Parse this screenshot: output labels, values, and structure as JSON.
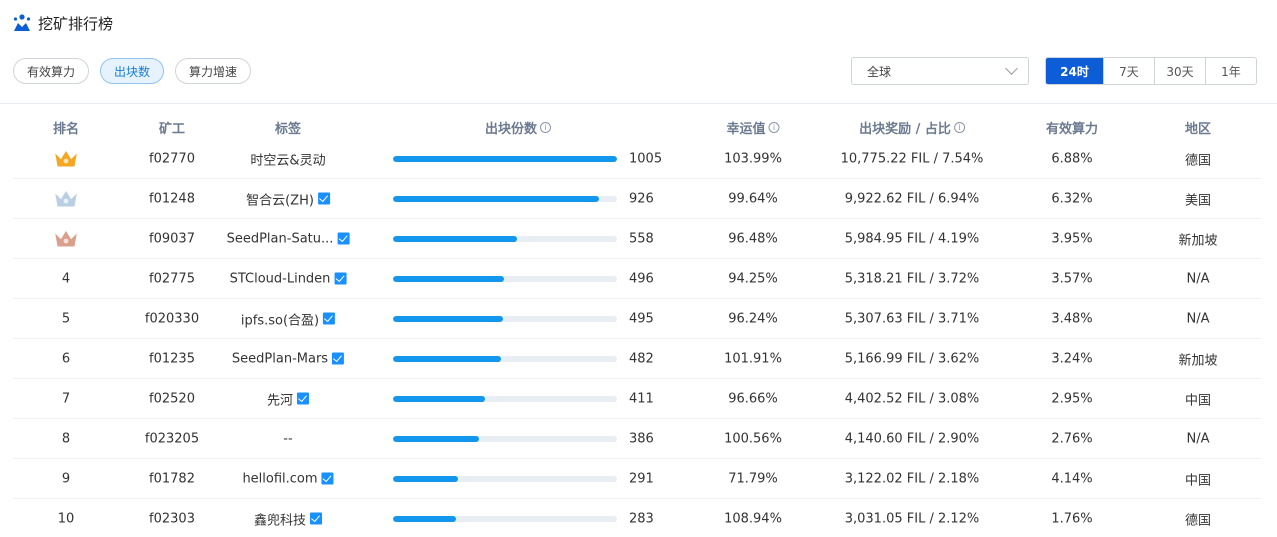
{
  "header": {
    "title": "挖矿排行榜"
  },
  "filters": {
    "items": [
      "有效算力",
      "出块数",
      "算力增速"
    ],
    "active": "出块数"
  },
  "region": {
    "value": "全球"
  },
  "time_tabs": {
    "items": [
      "24时",
      "7天",
      "30天",
      "1年"
    ],
    "active": "24时"
  },
  "table": {
    "headers": [
      "排名",
      "矿工",
      "标签",
      "出块份数",
      "幸运值",
      "出块奖励 / 占比",
      "有效算力",
      "地区"
    ],
    "info_icon": "i",
    "rows": [
      {
        "rank": "",
        "medal": "gold",
        "miner": "f02770",
        "tag": "时空云&灵动",
        "verified": false,
        "blocks": "1005",
        "share": 1.0,
        "luck": "103.99%",
        "reward": "10,775.22 FIL / 7.54%",
        "power": "6.88%",
        "region": "德国"
      },
      {
        "rank": "",
        "medal": "silver",
        "miner": "f01248",
        "tag": "智合云(ZH)",
        "verified": true,
        "blocks": "926",
        "share": 0.921,
        "luck": "99.64%",
        "reward": "9,922.62 FIL / 6.94%",
        "power": "6.32%",
        "region": "美国"
      },
      {
        "rank": "",
        "medal": "bronze",
        "miner": "f09037",
        "tag": "SeedPlan-Satu...",
        "verified": true,
        "blocks": "558",
        "share": 0.555,
        "luck": "96.48%",
        "reward": "5,984.95 FIL / 4.19%",
        "power": "3.95%",
        "region": "新加坡"
      },
      {
        "rank": "4",
        "medal": "",
        "miner": "f02775",
        "tag": "STCloud-Linden",
        "verified": true,
        "blocks": "496",
        "share": 0.494,
        "luck": "94.25%",
        "reward": "5,318.21 FIL / 3.72%",
        "power": "3.57%",
        "region": "N/A"
      },
      {
        "rank": "5",
        "medal": "",
        "miner": "f020330",
        "tag": "ipfs.so(合盈)",
        "verified": true,
        "blocks": "495",
        "share": 0.493,
        "luck": "96.24%",
        "reward": "5,307.63 FIL / 3.71%",
        "power": "3.48%",
        "region": "N/A"
      },
      {
        "rank": "6",
        "medal": "",
        "miner": "f01235",
        "tag": "SeedPlan-Mars",
        "verified": true,
        "blocks": "482",
        "share": 0.48,
        "luck": "101.91%",
        "reward": "5,166.99 FIL / 3.62%",
        "power": "3.24%",
        "region": "新加坡"
      },
      {
        "rank": "7",
        "medal": "",
        "miner": "f02520",
        "tag": "先河",
        "verified": true,
        "blocks": "411",
        "share": 0.409,
        "luck": "96.66%",
        "reward": "4,402.52 FIL / 3.08%",
        "power": "2.95%",
        "region": "中国"
      },
      {
        "rank": "8",
        "medal": "",
        "miner": "f023205",
        "tag": "--",
        "verified": false,
        "blocks": "386",
        "share": 0.384,
        "luck": "100.56%",
        "reward": "4,140.60 FIL / 2.90%",
        "power": "2.76%",
        "region": "N/A"
      },
      {
        "rank": "9",
        "medal": "",
        "miner": "f01782",
        "tag": "hellofil.com",
        "verified": true,
        "blocks": "291",
        "share": 0.29,
        "luck": "71.79%",
        "reward": "3,122.02 FIL / 2.18%",
        "power": "4.14%",
        "region": "中国"
      },
      {
        "rank": "10",
        "medal": "",
        "miner": "f02303",
        "tag": "鑫兜科技",
        "verified": true,
        "blocks": "283",
        "share": 0.282,
        "luck": "108.94%",
        "reward": "3,031.05 FIL / 2.12%",
        "power": "1.76%",
        "region": "德国"
      }
    ]
  },
  "colors": {
    "accent": "#0d5ed6",
    "bar": "#1296ee",
    "gold": "#f5a623",
    "silver": "#b9cfe3",
    "bronze": "#d9a08b"
  }
}
